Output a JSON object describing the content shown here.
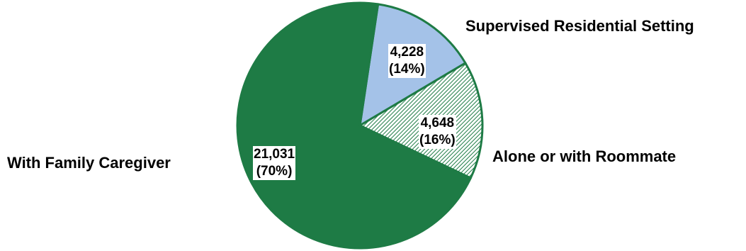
{
  "chart_data": {
    "type": "pie",
    "title": "",
    "categories": [
      "Supervised Residential Setting",
      "Alone or with Roommate",
      "With Family Caregiver"
    ],
    "values": [
      4228,
      4648,
      21031
    ],
    "value_labels": [
      "4,228",
      "4,648",
      "21,031"
    ],
    "percent_labels": [
      "(14%)",
      "(16%)",
      "(70%)"
    ],
    "colors": [
      "#a4c2e8",
      "hatched-green",
      "#1e7b45"
    ],
    "edge_color": "#1e7b45",
    "legend": "none"
  }
}
